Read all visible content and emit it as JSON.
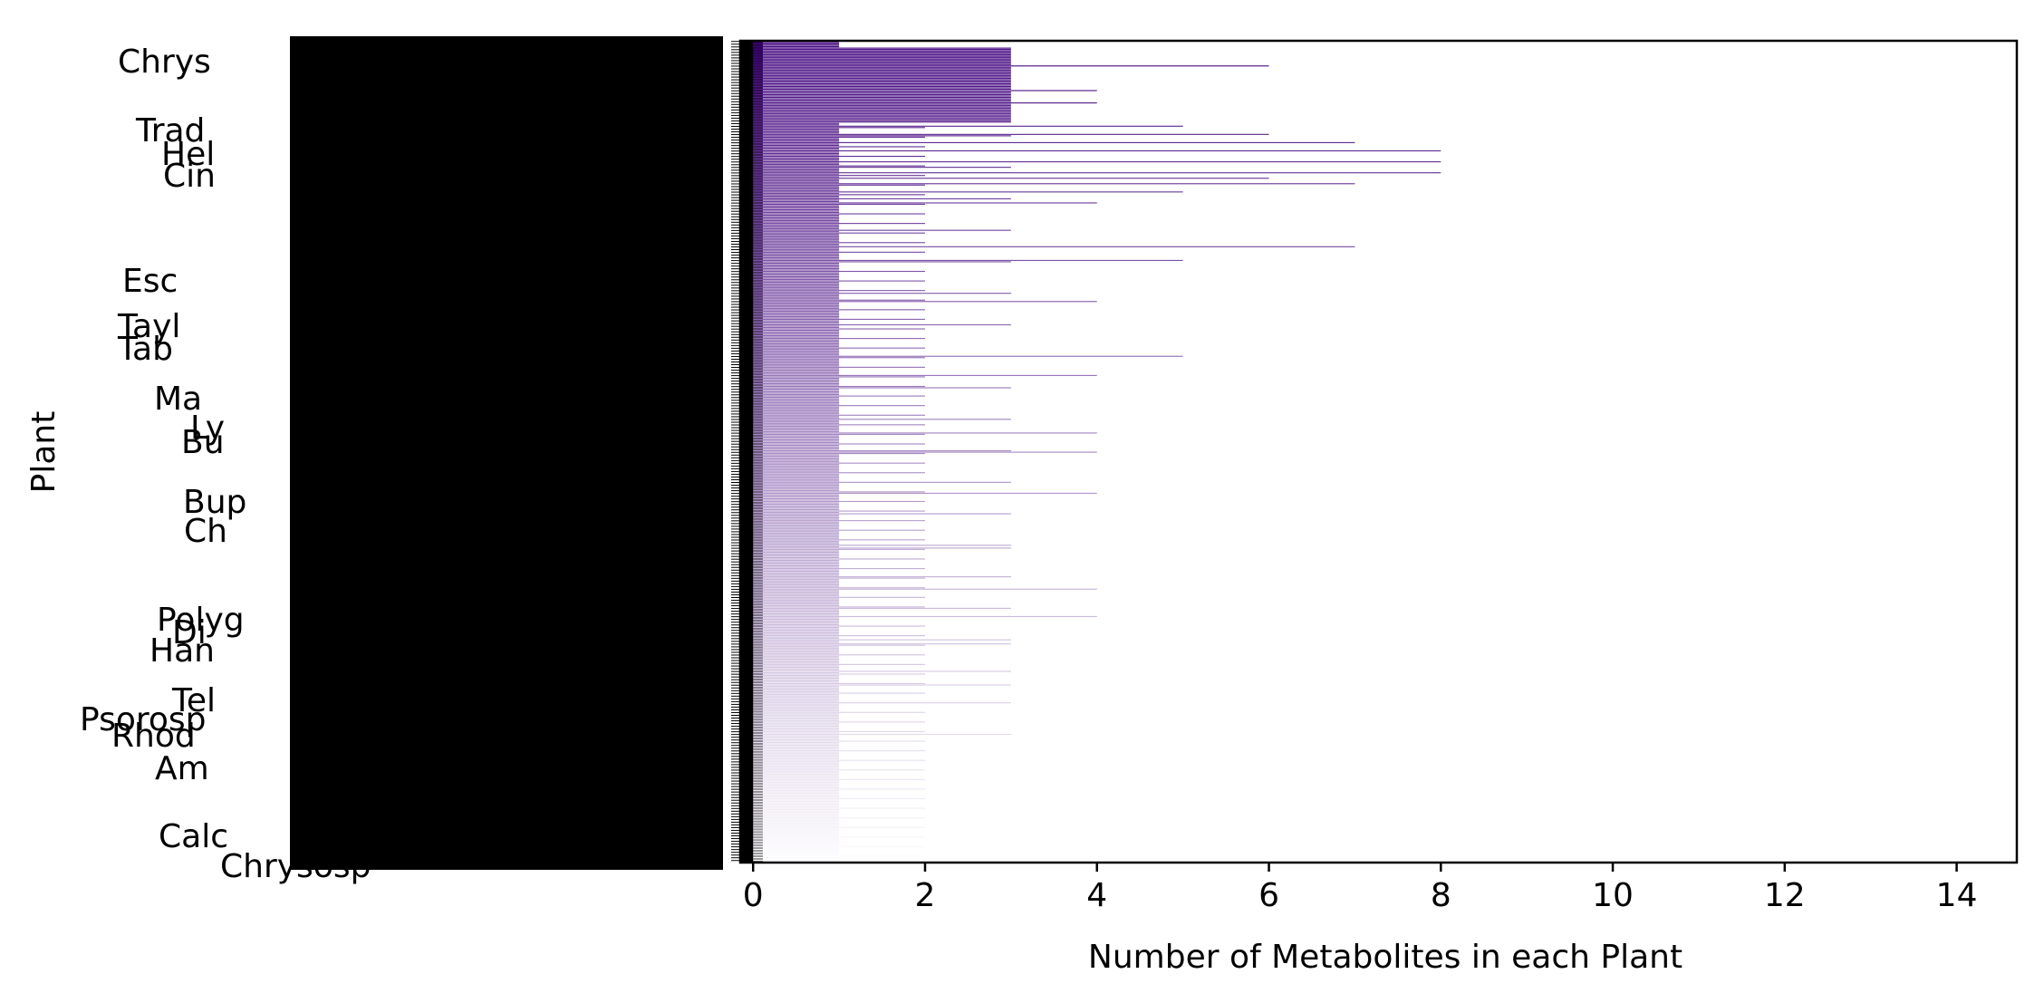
{
  "chart_data": {
    "type": "bar",
    "orientation": "horizontal",
    "xlabel": "Number of Metabolites in each Plant",
    "ylabel": "Plant",
    "xlim": [
      -0.15,
      14.7
    ],
    "xticks": [
      0,
      2,
      4,
      6,
      8,
      10,
      12,
      14
    ],
    "grid": false,
    "colormap": "purples",
    "color_dark": "#3f007d",
    "color_light": "#fcfbfd",
    "visible_category_labels": [
      "Chrys",
      "Trad",
      "Hel",
      "Cin",
      "Esc",
      "Tayl",
      "Tab",
      "Ma",
      "Ly",
      "Bu",
      "Bup",
      "Ch",
      "Polyg",
      "Di",
      "Han",
      "Tel",
      "Psorosp",
      "Rhod",
      "Am",
      "Calc",
      "Chrysosp"
    ],
    "bars": {
      "count": 600,
      "segments": [
        {
          "start": 0,
          "end": 160,
          "value": 1
        },
        {
          "start": 160,
          "end": 600,
          "value": 1
        },
        {
          "start": 20,
          "end": 60,
          "value": 2
        },
        {
          "start": 5,
          "end": 60,
          "value": 3
        }
      ],
      "outliers": [
        {
          "index": 18,
          "value": 6
        },
        {
          "index": 36,
          "value": 4
        },
        {
          "index": 45,
          "value": 4
        },
        {
          "index": 62,
          "value": 5
        },
        {
          "index": 68,
          "value": 6
        },
        {
          "index": 74,
          "value": 7
        },
        {
          "index": 80,
          "value": 8
        },
        {
          "index": 88,
          "value": 8
        },
        {
          "index": 96,
          "value": 8
        },
        {
          "index": 100,
          "value": 6
        },
        {
          "index": 104,
          "value": 7
        },
        {
          "index": 110,
          "value": 5
        },
        {
          "index": 118,
          "value": 4
        },
        {
          "index": 150,
          "value": 7
        },
        {
          "index": 160,
          "value": 5
        },
        {
          "index": 190,
          "value": 4
        },
        {
          "index": 230,
          "value": 5
        },
        {
          "index": 244,
          "value": 4
        },
        {
          "index": 286,
          "value": 4
        },
        {
          "index": 300,
          "value": 4
        },
        {
          "index": 330,
          "value": 4
        },
        {
          "index": 370,
          "value": 3
        },
        {
          "index": 400,
          "value": 4
        },
        {
          "index": 420,
          "value": 4
        },
        {
          "index": 440,
          "value": 3
        },
        {
          "index": 470,
          "value": 3
        }
      ]
    }
  }
}
